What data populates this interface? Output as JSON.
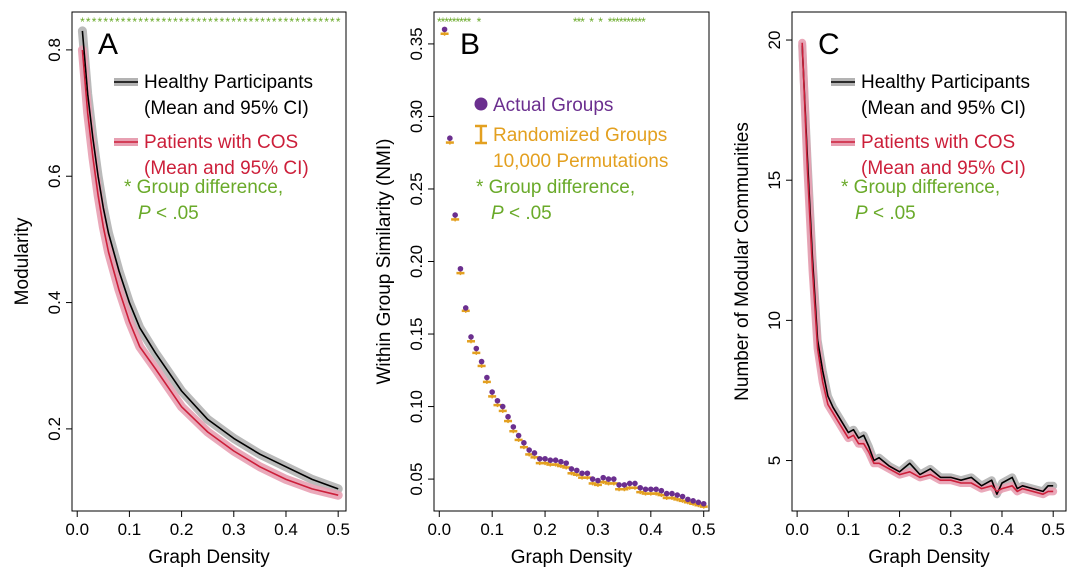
{
  "colors": {
    "healthy": "#000000",
    "healthy_ci": "#b3b3b3",
    "patients": "#cc1f3a",
    "patients_ci": "#e8a0b2",
    "group_difference": "#6aaa2a",
    "actual": "#6b2f8f",
    "randomized": "#e3a020"
  },
  "chart_data": [
    {
      "type": "line",
      "panel_letter": "A",
      "xlabel": "Graph Density",
      "ylabel": "Modularity",
      "xlim": [
        -0.01,
        0.515
      ],
      "ylim": [
        0.07,
        0.86
      ],
      "xticks": [
        0.0,
        0.1,
        0.2,
        0.3,
        0.4,
        0.5
      ],
      "xtick_labels": [
        "0.0",
        "0.1",
        "0.2",
        "0.3",
        "0.4",
        "0.5"
      ],
      "yticks": [
        0.2,
        0.4,
        0.6,
        0.8
      ],
      "ytick_labels": [
        "0.2",
        "0.4",
        "0.6",
        "0.8"
      ],
      "x": [
        0.01,
        0.02,
        0.03,
        0.04,
        0.05,
        0.06,
        0.08,
        0.1,
        0.12,
        0.15,
        0.2,
        0.25,
        0.3,
        0.35,
        0.4,
        0.45,
        0.5
      ],
      "series": [
        {
          "name": "Healthy Participants",
          "values": [
            0.83,
            0.73,
            0.66,
            0.6,
            0.55,
            0.51,
            0.45,
            0.4,
            0.36,
            0.32,
            0.26,
            0.215,
            0.185,
            0.16,
            0.14,
            0.12,
            0.105
          ]
        },
        {
          "name": "Patients with COS",
          "values": [
            0.8,
            0.7,
            0.63,
            0.57,
            0.52,
            0.48,
            0.42,
            0.37,
            0.33,
            0.295,
            0.235,
            0.195,
            0.165,
            0.14,
            0.12,
            0.105,
            0.095
          ]
        }
      ],
      "legend": [
        {
          "line1": "Healthy Participants",
          "line2": "(Mean and 95% CI)"
        },
        {
          "line1": "Patients with COS",
          "line2": "(Mean and 95% CI)"
        }
      ],
      "significance_note": {
        "line1": "* Group difference,",
        "line2_p": "P",
        "line2_rest": " < .05"
      },
      "significance_count": 45
    },
    {
      "type": "scatter",
      "panel_letter": "B",
      "xlabel": "Graph Density",
      "ylabel": "Within Group Similarity (NMI)",
      "xlim": [
        -0.01,
        0.51
      ],
      "ylim": [
        0.028,
        0.372
      ],
      "xticks": [
        0.0,
        0.1,
        0.2,
        0.3,
        0.4,
        0.5
      ],
      "xtick_labels": [
        "0.0",
        "0.1",
        "0.2",
        "0.3",
        "0.4",
        "0.5"
      ],
      "yticks": [
        0.05,
        0.1,
        0.15,
        0.2,
        0.25,
        0.3,
        0.35
      ],
      "ytick_labels": [
        "0.05",
        "0.10",
        "0.15",
        "0.20",
        "0.25",
        "0.30",
        "0.35"
      ],
      "x": [
        0.01,
        0.02,
        0.03,
        0.04,
        0.05,
        0.06,
        0.07,
        0.08,
        0.09,
        0.1,
        0.11,
        0.12,
        0.13,
        0.14,
        0.15,
        0.16,
        0.17,
        0.18,
        0.19,
        0.2,
        0.21,
        0.22,
        0.23,
        0.24,
        0.25,
        0.26,
        0.27,
        0.28,
        0.29,
        0.3,
        0.31,
        0.32,
        0.33,
        0.34,
        0.35,
        0.36,
        0.37,
        0.38,
        0.39,
        0.4,
        0.41,
        0.42,
        0.43,
        0.44,
        0.45,
        0.46,
        0.47,
        0.48,
        0.49,
        0.5
      ],
      "series": [
        {
          "name": "Actual Groups",
          "values": [
            0.36,
            0.285,
            0.232,
            0.195,
            0.168,
            0.148,
            0.14,
            0.131,
            0.12,
            0.11,
            0.104,
            0.1,
            0.093,
            0.086,
            0.08,
            0.075,
            0.07,
            0.068,
            0.064,
            0.064,
            0.063,
            0.063,
            0.062,
            0.061,
            0.057,
            0.056,
            0.054,
            0.054,
            0.05,
            0.049,
            0.051,
            0.05,
            0.05,
            0.046,
            0.046,
            0.047,
            0.047,
            0.044,
            0.043,
            0.043,
            0.043,
            0.042,
            0.04,
            0.04,
            0.039,
            0.038,
            0.036,
            0.035,
            0.034,
            0.033
          ]
        },
        {
          "name": "Randomized Groups",
          "values": [
            0.357,
            0.282,
            0.229,
            0.192,
            0.166,
            0.145,
            0.137,
            0.128,
            0.117,
            0.107,
            0.101,
            0.097,
            0.09,
            0.083,
            0.077,
            0.072,
            0.067,
            0.065,
            0.061,
            0.061,
            0.06,
            0.06,
            0.059,
            0.058,
            0.054,
            0.053,
            0.051,
            0.051,
            0.047,
            0.046,
            0.048,
            0.047,
            0.047,
            0.043,
            0.043,
            0.044,
            0.044,
            0.041,
            0.04,
            0.04,
            0.04,
            0.039,
            0.037,
            0.037,
            0.036,
            0.035,
            0.034,
            0.033,
            0.032,
            0.031
          ]
        }
      ],
      "legend": [
        {
          "line1": "Actual Groups"
        },
        {
          "line1": "Randomized Groups",
          "line2": "10,000 Permutations"
        }
      ],
      "significance_note": {
        "line1": "* Group difference,",
        "line2_p": "P",
        "line2_rest": " < .05"
      },
      "significance_marks": [
        0.0,
        0.007,
        0.014,
        0.021,
        0.028,
        0.035,
        0.042,
        0.049,
        0.056,
        0.075,
        0.257,
        0.264,
        0.271,
        0.288,
        0.305,
        0.323,
        0.33,
        0.337,
        0.344,
        0.351,
        0.358,
        0.365,
        0.372,
        0.379,
        0.386
      ]
    },
    {
      "type": "line",
      "panel_letter": "C",
      "xlabel": "Graph Density",
      "ylabel": "Number of Modular Communities",
      "xlim": [
        -0.01,
        0.525
      ],
      "ylim": [
        3.2,
        21.0
      ],
      "xticks": [
        0.0,
        0.1,
        0.2,
        0.3,
        0.4,
        0.5
      ],
      "xtick_labels": [
        "0.0",
        "0.1",
        "0.2",
        "0.3",
        "0.4",
        "0.5"
      ],
      "yticks": [
        5,
        10,
        15,
        20
      ],
      "ytick_labels": [
        "5",
        "10",
        "15",
        "20"
      ],
      "x": [
        0.01,
        0.02,
        0.03,
        0.04,
        0.05,
        0.06,
        0.07,
        0.08,
        0.09,
        0.1,
        0.11,
        0.12,
        0.13,
        0.14,
        0.15,
        0.16,
        0.18,
        0.2,
        0.22,
        0.24,
        0.26,
        0.28,
        0.3,
        0.32,
        0.34,
        0.36,
        0.38,
        0.39,
        0.4,
        0.42,
        0.43,
        0.44,
        0.46,
        0.48,
        0.49,
        0.5
      ],
      "series": [
        {
          "name": "Healthy Participants",
          "values": [
            19.8,
            15.8,
            12.2,
            9.3,
            8.2,
            7.3,
            6.9,
            6.6,
            6.3,
            6.0,
            6.1,
            5.8,
            5.9,
            5.5,
            5.0,
            5.1,
            4.8,
            4.6,
            4.9,
            4.5,
            4.7,
            4.4,
            4.4,
            4.3,
            4.4,
            4.1,
            4.3,
            3.8,
            4.2,
            4.4,
            4.0,
            4.1,
            4.0,
            3.9,
            4.1,
            4.1
          ]
        },
        {
          "name": "Patients with COS",
          "values": [
            19.9,
            15.4,
            11.8,
            9.0,
            7.8,
            7.0,
            6.7,
            6.4,
            6.1,
            5.8,
            5.9,
            5.6,
            5.6,
            5.3,
            4.9,
            4.9,
            4.7,
            4.5,
            4.6,
            4.4,
            4.5,
            4.3,
            4.3,
            4.2,
            4.2,
            4.0,
            4.1,
            3.9,
            4.0,
            4.1,
            3.9,
            4.0,
            3.9,
            3.8,
            3.9,
            3.9
          ]
        }
      ],
      "legend": [
        {
          "line1": "Healthy Participants",
          "line2": "(Mean and 95% CI)"
        },
        {
          "line1": "Patients with COS",
          "line2": "(Mean and 95% CI)"
        }
      ],
      "significance_note": {
        "line1": "* Group difference,",
        "line2_p": "P",
        "line2_rest": " < .05"
      }
    }
  ]
}
